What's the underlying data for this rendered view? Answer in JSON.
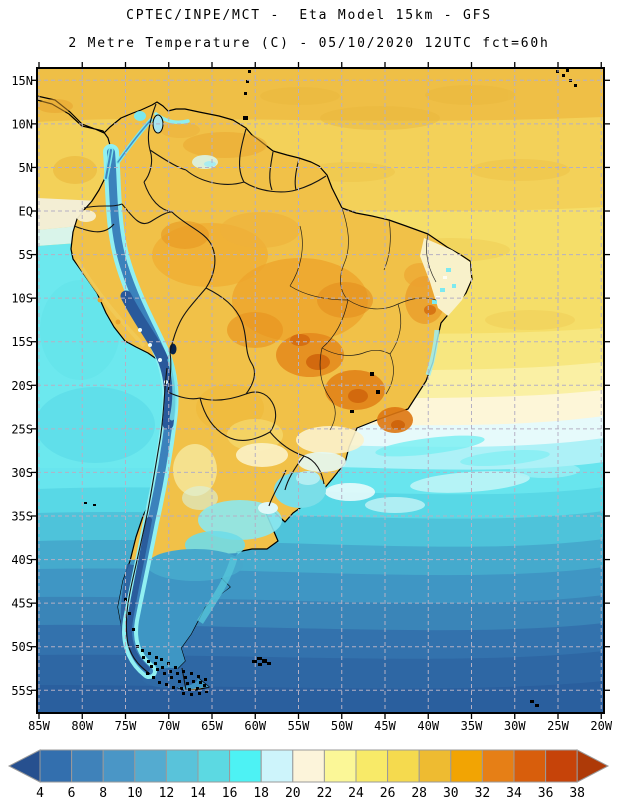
{
  "header": {
    "title_line1": "CPTEC/INPE/MCT -  Eta Model 15km - GFS",
    "title_line2": "2 Metre Temperature (C) - 05/10/2020 12UTC fct=60h"
  },
  "axes": {
    "y_labels": [
      "15N",
      "10N",
      "5N",
      "EQ",
      "5S",
      "10S",
      "15S",
      "20S",
      "25S",
      "30S",
      "35S",
      "40S",
      "45S",
      "50S",
      "55S"
    ],
    "x_labels": [
      "85W",
      "80W",
      "75W",
      "70W",
      "65W",
      "60W",
      "55W",
      "50W",
      "45W",
      "40W",
      "35W",
      "30W",
      "25W",
      "20W"
    ]
  },
  "colorbar": {
    "tick_labels": [
      "4",
      "6",
      "8",
      "10",
      "12",
      "14",
      "16",
      "18",
      "20",
      "22",
      "24",
      "26",
      "28",
      "30",
      "32",
      "34",
      "36",
      "38"
    ],
    "segment_colors": [
      "#336fae",
      "#3f82ba",
      "#4a96c6",
      "#54abd0",
      "#59c3da",
      "#5cd9e2",
      "#4df2f4",
      "#cdf4fb",
      "#fcf4da",
      "#fbf797",
      "#f8ea68",
      "#f5da4e",
      "#eebb31",
      "#f2a403",
      "#e67f16",
      "#d85e0c",
      "#c64309"
    ],
    "left_arrow_color": "#27508f",
    "right_arrow_color": "#ae3a08",
    "outline_color": "#9a9a9a"
  },
  "chart_data": {
    "type": "heatmap",
    "title": "CPTEC/INPE/MCT -  Eta Model 15km - GFS",
    "subtitle": "2 Metre Temperature (C) - 05/10/2020 12UTC fct=60h",
    "institution": "CPTEC/INPE/MCT",
    "model": "Eta Model 15km - GFS",
    "variable": "2 Metre Temperature (C)",
    "valid_date": "05/10/2020 12UTC",
    "forecast": "fct=60h",
    "region": "South America",
    "lon_ticks": [
      "85W",
      "80W",
      "75W",
      "70W",
      "65W",
      "60W",
      "55W",
      "50W",
      "45W",
      "40W",
      "35W",
      "30W",
      "25W",
      "20W"
    ],
    "lat_ticks": [
      "15N",
      "10N",
      "5N",
      "EQ",
      "5S",
      "10S",
      "15S",
      "20S",
      "25S",
      "30S",
      "35S",
      "40S",
      "45S",
      "50S",
      "55S"
    ],
    "colorbar_values_c": [
      4,
      6,
      8,
      10,
      12,
      14,
      16,
      18,
      20,
      22,
      24,
      26,
      28,
      30,
      32,
      34,
      36,
      38
    ],
    "legend_position": "bottom",
    "grid": true
  }
}
